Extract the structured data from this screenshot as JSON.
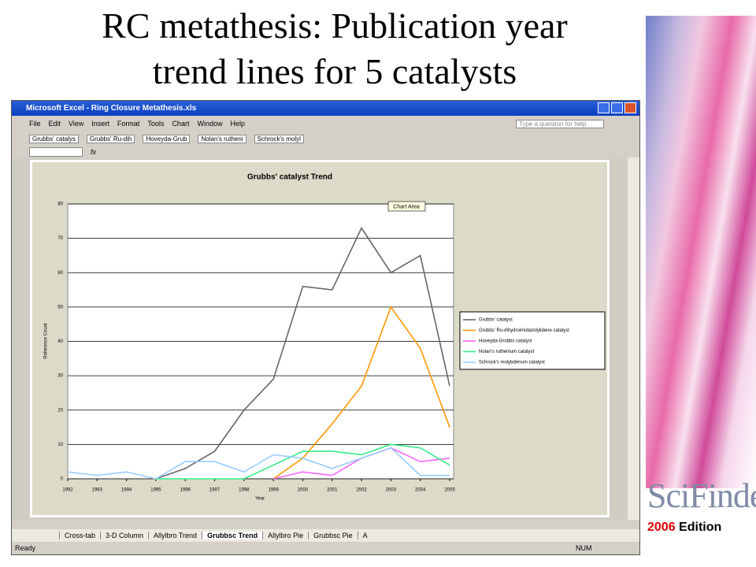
{
  "slide": {
    "title_lines": [
      "RC metathesis: Publication year",
      "trend lines for 5 catalysts"
    ],
    "logo": "SciFinder",
    "edition_year": "2006",
    "edition": "Edition"
  },
  "window": {
    "title": "Microsoft Excel - Ring Closure Metathesis.xls",
    "menu": [
      "File",
      "Edit",
      "View",
      "Insert",
      "Format",
      "Tools",
      "Chart",
      "Window",
      "Help"
    ],
    "help_box": "Type a question for help",
    "toolbar_items": [
      "Grubbs' catalys",
      "Grubbs' Ru-dih",
      "Hoveyda-Grub",
      "Nolan's rutheni",
      "Schrock's molyl"
    ],
    "formula_label": "fx",
    "chart_tip": "Chart Area",
    "sheet_tabs": [
      "Cross-tab",
      "3-D Column",
      "Allylbro Trend",
      "Grubbsc Trend",
      "Allylbro Pie",
      "Grubbsc Pie",
      "A"
    ],
    "status": "Ready",
    "status_right": "NUM"
  },
  "chart_data": {
    "type": "line",
    "title": "Grubbs' catalyst Trend",
    "x_label": "Year",
    "y_label": "Reference Count",
    "categories": [
      "1992",
      "1993",
      "1994",
      "1995",
      "1996",
      "1997",
      "1998",
      "1999",
      "2000",
      "2001",
      "2002",
      "2003",
      "2004",
      "2005"
    ],
    "ylim": [
      0,
      80
    ],
    "yticks": [
      0,
      10,
      20,
      30,
      40,
      50,
      60,
      70,
      80
    ],
    "grid": true,
    "legend": "right",
    "series": [
      {
        "name": "Grubbs' catalyst",
        "color": "#666666",
        "values": [
          null,
          null,
          null,
          0,
          3,
          8,
          20,
          29,
          56,
          55,
          73,
          60,
          65,
          27
        ]
      },
      {
        "name": "Grubbs' Ru-dihydroimidazolylidene catalyst",
        "color": "#ff9900",
        "values": [
          null,
          null,
          null,
          null,
          null,
          null,
          null,
          0,
          6,
          16,
          27,
          50,
          38,
          15
        ]
      },
      {
        "name": "Hoveyda-Grubbs catalyst",
        "color": "#ff66ff",
        "values": [
          null,
          null,
          null,
          null,
          null,
          null,
          null,
          0,
          2,
          1,
          6,
          9,
          5,
          6
        ]
      },
      {
        "name": "Nolan's ruthenium catalyst",
        "color": "#33ee88",
        "values": [
          null,
          null,
          null,
          0,
          0,
          0,
          0,
          4,
          8,
          8,
          7,
          10,
          9,
          4
        ]
      },
      {
        "name": "Schrock's molybdenum catalyst",
        "color": "#99ccff",
        "values": [
          2,
          1,
          2,
          0,
          5,
          5,
          2,
          7,
          6,
          3,
          6,
          9,
          1,
          1
        ]
      }
    ]
  }
}
